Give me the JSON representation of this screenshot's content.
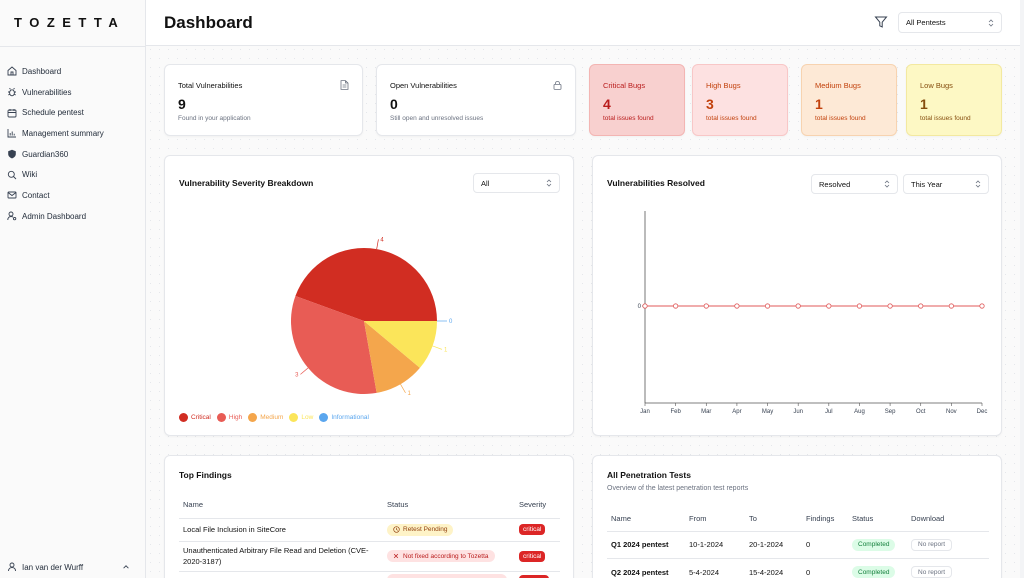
{
  "app": {
    "logo": "TOZETTA"
  },
  "sidebar": {
    "items": [
      {
        "label": "Dashboard",
        "icon": "home-icon"
      },
      {
        "label": "Vulnerabilities",
        "icon": "bug-icon"
      },
      {
        "label": "Schedule pentest",
        "icon": "calendar-icon"
      },
      {
        "label": "Management summary",
        "icon": "chart-icon"
      },
      {
        "label": "Guardian360",
        "icon": "shield-icon"
      },
      {
        "label": "Wiki",
        "icon": "search-icon"
      },
      {
        "label": "Contact",
        "icon": "mail-icon"
      },
      {
        "label": "Admin Dashboard",
        "icon": "user-cog-icon"
      }
    ],
    "user": {
      "name": "Ian van der Wurff"
    }
  },
  "header": {
    "title": "Dashboard",
    "pentest_select": "All Pentests"
  },
  "stats": {
    "total": {
      "title": "Total Vulnerabilities",
      "value": "9",
      "sub": "Found in your application"
    },
    "open": {
      "title": "Open Vulnerabilities",
      "value": "0",
      "sub": "Still open and unresolved issues"
    },
    "critical": {
      "title": "Critical Bugs",
      "value": "4",
      "sub": "total issues found"
    },
    "high": {
      "title": "High Bugs",
      "value": "3",
      "sub": "total issues found"
    },
    "medium": {
      "title": "Medium Bugs",
      "value": "1",
      "sub": "total issues found"
    },
    "low": {
      "title": "Low Bugs",
      "value": "1",
      "sub": "total issues found"
    }
  },
  "severity_panel": {
    "title": "Vulnerability Severity Breakdown",
    "filter": "All"
  },
  "resolved_panel": {
    "title": "Vulnerabilities Resolved",
    "filter_status": "Resolved",
    "filter_period": "This Year"
  },
  "colors": {
    "critical": "#d12d22",
    "high": "#e85c55",
    "medium": "#f4a64c",
    "low": "#fbe55a",
    "informational": "#5aa6ee",
    "line": "#e05a5a"
  },
  "chart_data": [
    {
      "type": "pie",
      "title": "Vulnerability Severity Breakdown",
      "categories": [
        "Critical",
        "High",
        "Medium",
        "Low",
        "Informational"
      ],
      "values": [
        4,
        3,
        1,
        1,
        0
      ],
      "legend": "bottom-left"
    },
    {
      "type": "line",
      "title": "Vulnerabilities Resolved",
      "x": [
        "Jan",
        "Feb",
        "Mar",
        "Apr",
        "May",
        "Jun",
        "Jul",
        "Aug",
        "Sep",
        "Oct",
        "Nov",
        "Dec"
      ],
      "series": [
        {
          "values": [
            0,
            0,
            0,
            0,
            0,
            0,
            0,
            0,
            0,
            0,
            0,
            0
          ]
        }
      ],
      "yticks": [
        "0"
      ],
      "grid": false
    }
  ],
  "findings": {
    "title": "Top Findings",
    "columns": [
      "Name",
      "Status",
      "Severity"
    ],
    "rows": [
      {
        "name": "Local File Inclusion in SiteCore",
        "status": "Retest Pending",
        "severity": "critical"
      },
      {
        "name": "Unauthenticated Arbitrary File Read and Deletion (CVE-2020-3187)",
        "status": "Not fixed according to Tozetta",
        "severity": "critical"
      }
    ]
  },
  "pentests": {
    "title": "All Penetration Tests",
    "subtitle": "Overview of the latest penetration test reports",
    "columns": [
      "Name",
      "From",
      "To",
      "Findings",
      "Status",
      "Download"
    ],
    "rows": [
      {
        "name": "Q1 2024 pentest",
        "from": "10-1-2024",
        "to": "20-1-2024",
        "findings": "0",
        "status": "Completed",
        "download": "No report"
      },
      {
        "name": "Q2 2024 pentest",
        "from": "5-4-2024",
        "to": "15-4-2024",
        "findings": "0",
        "status": "Completed",
        "download": "No report"
      }
    ]
  }
}
